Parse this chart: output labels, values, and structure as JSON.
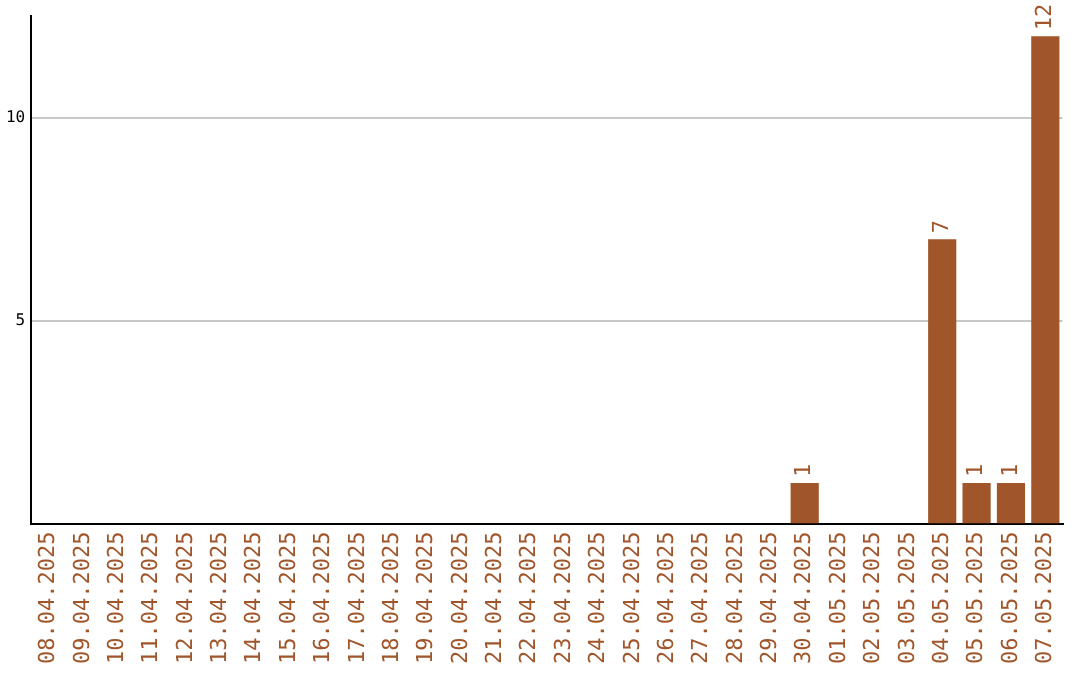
{
  "chart_data": {
    "type": "bar",
    "categories": [
      "08.04.2025",
      "09.04.2025",
      "10.04.2025",
      "11.04.2025",
      "12.04.2025",
      "13.04.2025",
      "14.04.2025",
      "15.04.2025",
      "16.04.2025",
      "17.04.2025",
      "18.04.2025",
      "19.04.2025",
      "20.04.2025",
      "21.04.2025",
      "22.04.2025",
      "23.04.2025",
      "24.04.2025",
      "25.04.2025",
      "26.04.2025",
      "27.04.2025",
      "28.04.2025",
      "29.04.2025",
      "30.04.2025",
      "01.05.2025",
      "02.05.2025",
      "03.05.2025",
      "04.05.2025",
      "05.05.2025",
      "06.05.2025",
      "07.05.2025"
    ],
    "values": [
      0,
      0,
      0,
      0,
      0,
      0,
      0,
      0,
      0,
      0,
      0,
      0,
      0,
      0,
      0,
      0,
      0,
      0,
      0,
      0,
      0,
      0,
      1,
      0,
      0,
      0,
      7,
      1,
      1,
      12
    ],
    "value_labels": [
      null,
      null,
      null,
      null,
      null,
      null,
      null,
      null,
      null,
      null,
      null,
      null,
      null,
      null,
      null,
      null,
      null,
      null,
      null,
      null,
      null,
      null,
      "1",
      null,
      null,
      null,
      "7",
      "1",
      "1",
      "12"
    ],
    "color": "#a0562a",
    "ylim": [
      0,
      12.5
    ],
    "yticks": [
      5,
      10
    ],
    "grid": "y",
    "legend": false
  }
}
